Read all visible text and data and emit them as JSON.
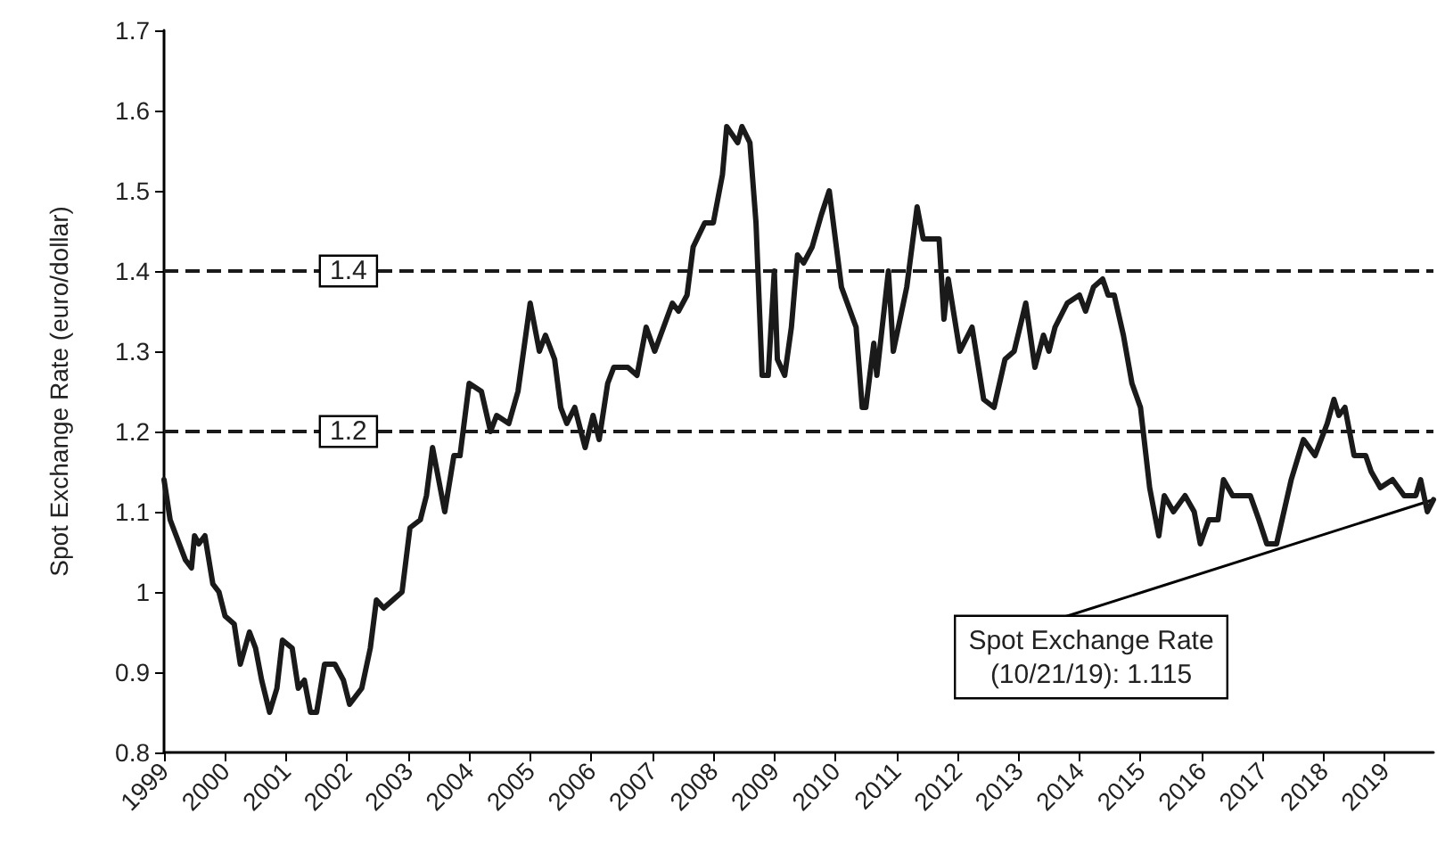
{
  "chart_data": {
    "type": "line",
    "ylabel": "Spot Exchange Rate (euro/dollar)",
    "x": [
      1999.0,
      1999.1,
      1999.35,
      1999.45,
      1999.5,
      1999.57,
      1999.67,
      1999.8,
      1999.9,
      2000.0,
      2000.15,
      2000.25,
      2000.4,
      2000.5,
      2000.6,
      2000.73,
      2000.85,
      2000.94,
      2001.1,
      2001.2,
      2001.3,
      2001.4,
      2001.5,
      2001.63,
      2001.8,
      2001.94,
      2002.04,
      2002.24,
      2002.38,
      2002.48,
      2002.6,
      2002.9,
      2003.03,
      2003.2,
      2003.3,
      2003.4,
      2003.5,
      2003.6,
      2003.75,
      2003.85,
      2004.0,
      2004.2,
      2004.35,
      2004.45,
      2004.65,
      2004.8,
      2005.0,
      2005.15,
      2005.25,
      2005.4,
      2005.5,
      2005.6,
      2005.73,
      2005.9,
      2006.03,
      2006.13,
      2006.27,
      2006.37,
      2006.6,
      2006.75,
      2006.9,
      2007.04,
      2007.33,
      2007.43,
      2007.57,
      2007.67,
      2007.86,
      2008.0,
      2008.15,
      2008.22,
      2008.4,
      2008.47,
      2008.6,
      2008.7,
      2008.8,
      2008.9,
      2009.0,
      2009.05,
      2009.17,
      2009.28,
      2009.38,
      2009.48,
      2009.62,
      2009.77,
      2009.9,
      2010.1,
      2010.34,
      2010.44,
      2010.5,
      2010.63,
      2010.68,
      2010.87,
      2010.95,
      2011.17,
      2011.34,
      2011.44,
      2011.7,
      2011.78,
      2011.85,
      2012.04,
      2012.24,
      2012.43,
      2012.6,
      2012.78,
      2012.93,
      2013.12,
      2013.27,
      2013.41,
      2013.5,
      2013.6,
      2013.8,
      2014.0,
      2014.1,
      2014.23,
      2014.38,
      2014.47,
      2014.57,
      2014.72,
      2014.86,
      2015.0,
      2015.15,
      2015.3,
      2015.39,
      2015.54,
      2015.73,
      2015.88,
      2015.98,
      2016.12,
      2016.27,
      2016.36,
      2016.51,
      2016.8,
      2016.94,
      2017.07,
      2017.23,
      2017.47,
      2017.67,
      2017.86,
      2018.06,
      2018.17,
      2018.25,
      2018.35,
      2018.5,
      2018.69,
      2018.78,
      2018.93,
      2019.13,
      2019.32,
      2019.51,
      2019.59,
      2019.7,
      2019.8
    ],
    "series": [
      {
        "color": "#1a1a1a",
        "values": [
          1.14,
          1.09,
          1.04,
          1.03,
          1.07,
          1.06,
          1.07,
          1.01,
          1.0,
          0.97,
          0.96,
          0.91,
          0.95,
          0.93,
          0.89,
          0.85,
          0.88,
          0.94,
          0.93,
          0.88,
          0.89,
          0.85,
          0.85,
          0.91,
          0.91,
          0.89,
          0.86,
          0.88,
          0.93,
          0.99,
          0.98,
          1.0,
          1.08,
          1.09,
          1.12,
          1.18,
          1.14,
          1.1,
          1.17,
          1.17,
          1.26,
          1.25,
          1.2,
          1.22,
          1.21,
          1.25,
          1.36,
          1.3,
          1.32,
          1.29,
          1.23,
          1.21,
          1.23,
          1.18,
          1.22,
          1.19,
          1.26,
          1.28,
          1.28,
          1.27,
          1.33,
          1.3,
          1.36,
          1.35,
          1.37,
          1.43,
          1.46,
          1.46,
          1.52,
          1.58,
          1.56,
          1.58,
          1.56,
          1.46,
          1.27,
          1.27,
          1.4,
          1.29,
          1.27,
          1.33,
          1.42,
          1.41,
          1.43,
          1.47,
          1.5,
          1.38,
          1.33,
          1.23,
          1.23,
          1.31,
          1.27,
          1.4,
          1.3,
          1.38,
          1.48,
          1.44,
          1.44,
          1.34,
          1.39,
          1.3,
          1.33,
          1.24,
          1.23,
          1.29,
          1.3,
          1.36,
          1.28,
          1.32,
          1.3,
          1.33,
          1.36,
          1.37,
          1.35,
          1.38,
          1.39,
          1.37,
          1.37,
          1.32,
          1.26,
          1.23,
          1.13,
          1.07,
          1.12,
          1.1,
          1.12,
          1.1,
          1.06,
          1.09,
          1.09,
          1.14,
          1.12,
          1.12,
          1.09,
          1.06,
          1.06,
          1.14,
          1.19,
          1.17,
          1.21,
          1.24,
          1.22,
          1.23,
          1.17,
          1.17,
          1.15,
          1.13,
          1.14,
          1.12,
          1.12,
          1.14,
          1.1,
          1.115
        ]
      }
    ],
    "xlim": [
      1999,
      2019.8
    ],
    "xticks": [
      1999,
      2000,
      2001,
      2002,
      2003,
      2004,
      2005,
      2006,
      2007,
      2008,
      2009,
      2010,
      2011,
      2012,
      2013,
      2014,
      2015,
      2016,
      2017,
      2018,
      2019
    ],
    "ylim": [
      0.8,
      1.7
    ],
    "yticks": [
      0.8,
      0.9,
      1,
      1.1,
      1.2,
      1.3,
      1.4,
      1.5,
      1.6,
      1.7
    ],
    "grid": false,
    "marker": "none",
    "line_style": "solid",
    "ref_lines": [
      {
        "axis": "y",
        "value": 1.4,
        "label": "1.4",
        "line_style": "dashed",
        "color": "#1a1a1a"
      },
      {
        "axis": "y",
        "value": 1.2,
        "label": "1.2",
        "line_style": "dashed",
        "color": "#1a1a1a"
      }
    ],
    "annotations": [
      {
        "text": "Spot Exchange Rate\n(10/21/19): 1.115",
        "x": 2019.8,
        "y": 1.115
      }
    ]
  }
}
